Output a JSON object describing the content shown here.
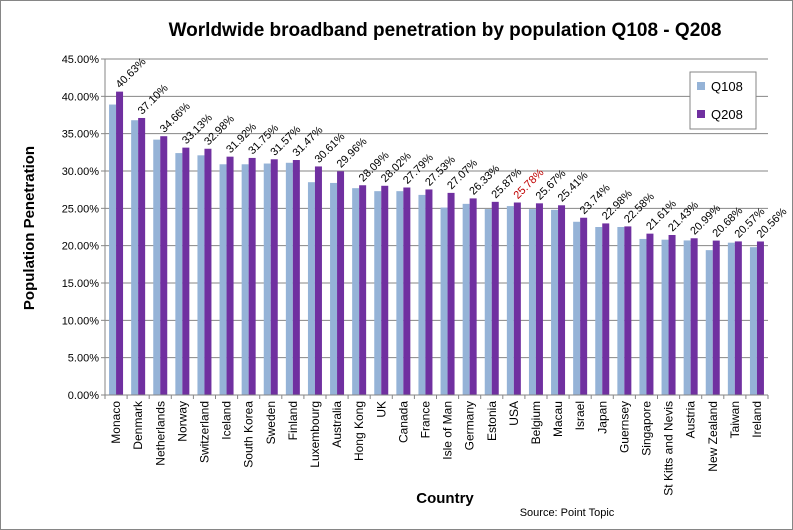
{
  "chart_data": {
    "type": "bar",
    "title": "Worldwide broadband penetration by population Q108 - Q208",
    "xlabel": "Country",
    "ylabel": "Population Penetration",
    "source": "Source: Point Topic",
    "ylim": [
      0,
      45
    ],
    "yticks": [
      "0.00%",
      "5.00%",
      "10.00%",
      "15.00%",
      "20.00%",
      "25.00%",
      "30.00%",
      "35.00%",
      "40.00%",
      "45.00%"
    ],
    "grid": true,
    "legend_position": "top-right",
    "categories": [
      "Monaco",
      "Denmark",
      "Netherlands",
      "Norway",
      "Switzerland",
      "Iceland",
      "South Korea",
      "Sweden",
      "Finland",
      "Luxembourg",
      "Australia",
      "Hong Kong",
      "UK",
      "Canada",
      "France",
      "Isle of Man",
      "Germany",
      "Estonia",
      "USA",
      "Belgium",
      "Macau",
      "Israel",
      "Japan",
      "Guernsey",
      "Singapore",
      "St Kitts and Nevis",
      "Austria",
      "New Zealand",
      "Taiwan",
      "Ireland"
    ],
    "series": [
      {
        "name": "Q108",
        "color": "#95b3d7",
        "values": [
          38.9,
          36.8,
          34.2,
          32.4,
          32.1,
          30.9,
          30.9,
          31.0,
          31.1,
          28.5,
          28.4,
          27.7,
          27.3,
          27.3,
          26.8,
          25.1,
          25.6,
          24.9,
          25.3,
          24.9,
          24.8,
          23.2,
          22.5,
          22.5,
          20.9,
          20.8,
          20.7,
          19.4,
          20.4,
          19.8
        ]
      },
      {
        "name": "Q208",
        "color": "#7030a0",
        "values": [
          40.63,
          37.1,
          34.66,
          33.13,
          32.98,
          31.92,
          31.75,
          31.57,
          31.47,
          30.61,
          29.96,
          28.09,
          28.02,
          27.79,
          27.53,
          27.07,
          26.33,
          25.87,
          25.78,
          25.67,
          25.41,
          23.74,
          22.98,
          22.58,
          21.61,
          21.43,
          20.99,
          20.68,
          20.57,
          20.56
        ]
      }
    ],
    "data_labels": [
      "40.63%",
      "37.10%",
      "34.66%",
      "33.13%",
      "32.98%",
      "31.92%",
      "31.75%",
      "31.57%",
      "31.47%",
      "30.61%",
      "29.96%",
      "28.09%",
      "28.02%",
      "27.79%",
      "27.53%",
      "27.07%",
      "26.33%",
      "25.87%",
      "25.78%",
      "25.67%",
      "25.41%",
      "23.74%",
      "22.98%",
      "22.58%",
      "21.61%",
      "21.43%",
      "20.99%",
      "20.68%",
      "20.57%",
      "20.56%"
    ],
    "highlight_label_color": "#c00000",
    "highlight_index": 18
  }
}
